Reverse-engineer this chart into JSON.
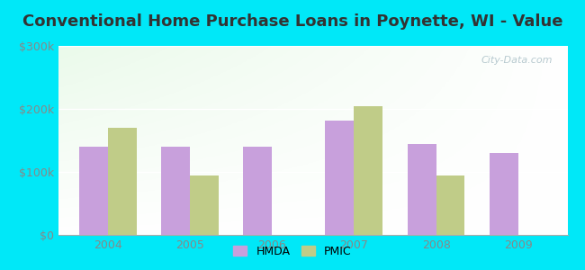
{
  "title": "Conventional Home Purchase Loans in Poynette, WI - Value",
  "years": [
    2004,
    2005,
    2006,
    2007,
    2008,
    2009
  ],
  "hmda_values": [
    140000,
    140000,
    140000,
    182000,
    145000,
    130000
  ],
  "pmic_values": [
    170000,
    95000,
    null,
    205000,
    95000,
    null
  ],
  "hmda_color": "#c8a0dc",
  "pmic_color": "#c0cc88",
  "ylim": [
    0,
    300000
  ],
  "yticks": [
    0,
    100000,
    200000,
    300000
  ],
  "ytick_labels": [
    "$0",
    "$100k",
    "$200k",
    "$300k"
  ],
  "outer_bg": "#00e8f8",
  "plot_bg": "#eaf5ea",
  "bar_width": 0.35,
  "legend_labels": [
    "HMDA",
    "PMIC"
  ],
  "watermark": "City-Data.com",
  "title_fontsize": 13,
  "tick_fontsize": 9,
  "tick_color": "#888888"
}
